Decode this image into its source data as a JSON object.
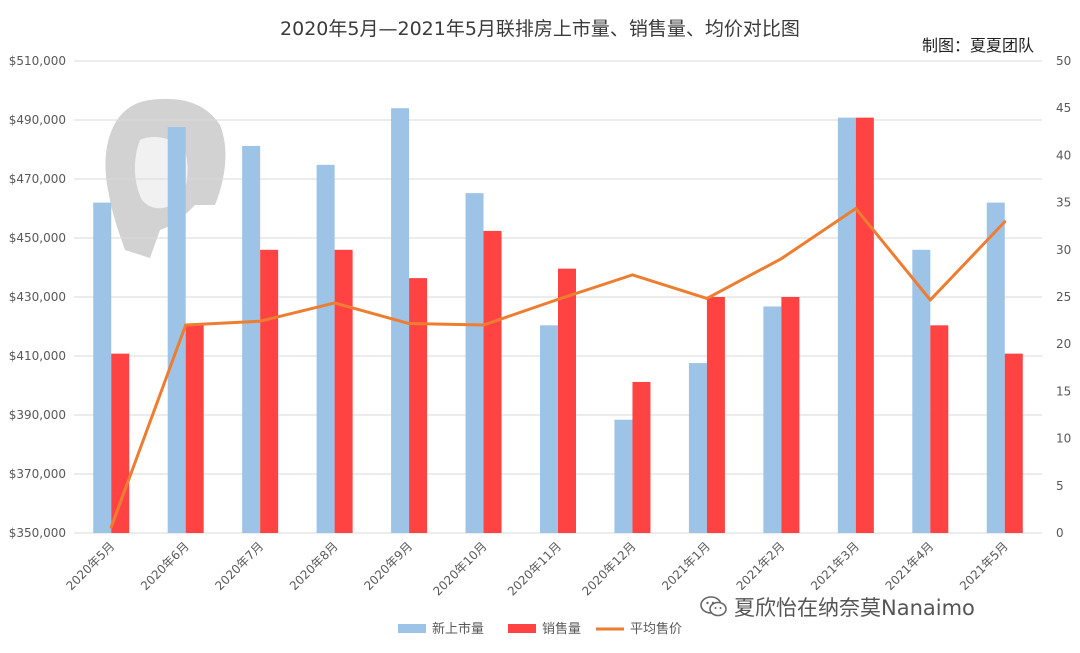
{
  "title": "2020年5月—2021年5月联排房上市量、销售量、均价对比图",
  "credit": "制图：夏夏团队",
  "watermark": "夏欣怡在纳奈莫Nanaimo",
  "colors": {
    "listings": "#9DC3E6",
    "sales": "#FF4343",
    "price": "#ED7D31",
    "grid": "#D9D9D9"
  },
  "chart_data": {
    "type": "bar",
    "categories": [
      "2020年5月",
      "2020年6月",
      "2020年7月",
      "2020年8月",
      "2020年9月",
      "2020年10月",
      "2020年11月",
      "2020年12月",
      "2021年1月",
      "2021年2月",
      "2021年3月",
      "2021年4月",
      "2021年5月"
    ],
    "series": [
      {
        "name": "新上市量",
        "type": "bar",
        "axis": "right",
        "values": [
          35,
          43,
          41,
          39,
          45,
          36,
          22,
          12,
          18,
          24,
          44,
          30,
          35
        ]
      },
      {
        "name": "销售量",
        "type": "bar",
        "axis": "right",
        "values": [
          19,
          22,
          30,
          30,
          27,
          32,
          28,
          16,
          25,
          25,
          44,
          22,
          19
        ]
      },
      {
        "name": "平均售价",
        "type": "line",
        "axis": "left",
        "values": [
          352000,
          420500,
          421800,
          428000,
          421000,
          420500,
          429200,
          437500,
          429500,
          443000,
          460000,
          429000,
          455500
        ]
      }
    ],
    "y_left": {
      "min": 350000,
      "max": 510000,
      "step": 20000,
      "tick_labels": [
        "$350,000",
        "$370,000",
        "$390,000",
        "$410,000",
        "$430,000",
        "$450,000",
        "$470,000",
        "$490,000",
        "$510,000"
      ]
    },
    "y_right": {
      "min": 0,
      "max": 50,
      "step": 5,
      "tick_labels": [
        "0",
        "5",
        "10",
        "15",
        "20",
        "25",
        "30",
        "35",
        "40",
        "45",
        "50"
      ]
    },
    "grid": true,
    "legend_position": "bottom"
  }
}
